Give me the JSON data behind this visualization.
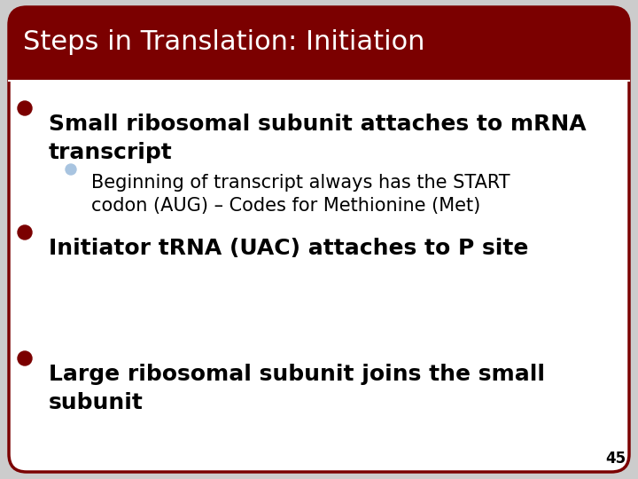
{
  "title": "Steps in Translation: Initiation",
  "title_bg_color": "#7B0000",
  "title_text_color": "#FFFFFF",
  "slide_bg_color": "#FFFFFF",
  "border_color": "#7B0000",
  "bullet_color": "#7B0000",
  "sub_bullet_color": "#A8C4E0",
  "text_color": "#000000",
  "page_number": "45",
  "fig_width": 7.2,
  "fig_height": 5.4,
  "dpi": 100,
  "title_fontsize": 22,
  "bullet_fontsize": 18,
  "sub_bullet_fontsize": 15,
  "page_num_fontsize": 12,
  "bullets": [
    {
      "text": "Small ribosomal subunit attaches to mRNA\ntranscript",
      "level": 1,
      "sub_bullets": [
        {
          "text": "Beginning of transcript always has the START\ncodon (AUG) – Codes for Methionine (Met)",
          "level": 2
        }
      ]
    },
    {
      "text": "Initiator tRNA (UAC) attaches to P site",
      "level": 1,
      "sub_bullets": []
    },
    {
      "text": "Large ribosomal subunit joins the small\nsubunit",
      "level": 1,
      "sub_bullets": []
    }
  ]
}
